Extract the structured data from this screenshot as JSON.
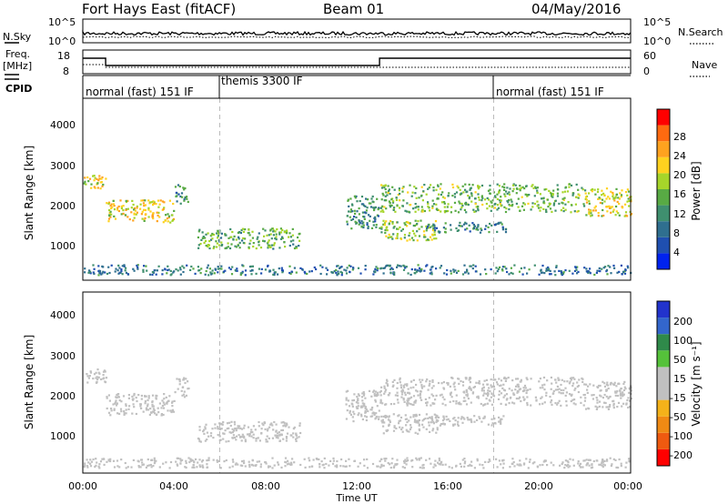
{
  "header": {
    "station": "Fort Hays East (fitACF)",
    "beam": "Beam 01",
    "date": "04/May/2016"
  },
  "top_panels": {
    "nsky": {
      "label": "N.Sky",
      "ticks": [
        "10^5",
        "10^0"
      ]
    },
    "nsearch": {
      "label": "N.Search",
      "ticks": [
        "10^5",
        "10^0"
      ]
    },
    "freq": {
      "label_line1": "Freq.",
      "label_line2": "[MHz]",
      "ticks": [
        "18",
        "8"
      ]
    },
    "nave": {
      "label": "Nave",
      "ticks": [
        "60",
        "0"
      ]
    },
    "cpid": {
      "label": "CPID",
      "segments": [
        "normal (fast) 151 IF",
        "themis 3300 IF",
        "normal (fast) 151 IF"
      ]
    }
  },
  "colors": {
    "power_scale": [
      "#0022ee",
      "#1f4fb0",
      "#2f6f8f",
      "#3f8f6f",
      "#58aa44",
      "#a6d52a",
      "#ffd21f",
      "#ffa21f",
      "#ff6a10",
      "#ff0000"
    ],
    "velocity_scale": [
      "#2233cc",
      "#3366cc",
      "#2f8a4a",
      "#55c23a",
      "#c0c0c0",
      "#c0c0c0",
      "#f4b21a",
      "#f08a14",
      "#ef5a10",
      "#ff0000"
    ]
  },
  "chart_data": [
    {
      "type": "heatmap",
      "name": "power",
      "ylabel": "Slant Range [km]",
      "y_ticks": [
        "1000",
        "2000",
        "3000",
        "4000"
      ],
      "ylim": [
        0,
        4500
      ],
      "colorbar_label": "Power [dB]",
      "colorbar_ticks": [
        "4",
        "8",
        "12",
        "16",
        "20",
        "24",
        "28"
      ],
      "colorbar_range": [
        0,
        30
      ],
      "echo_regions": [
        {
          "x": [
            0.0,
            1.0
          ],
          "y": [
            2250,
            2650
          ],
          "value": 18
        },
        {
          "x": [
            1.0,
            4.0
          ],
          "y": [
            1450,
            2000
          ],
          "value": 19
        },
        {
          "x": [
            4.0,
            4.6
          ],
          "y": [
            1900,
            2400
          ],
          "value": 10
        },
        {
          "x": [
            5.0,
            9.5
          ],
          "y": [
            800,
            1300
          ],
          "value": 13
        },
        {
          "x": [
            11.5,
            13.0
          ],
          "y": [
            1300,
            2100
          ],
          "value": 10
        },
        {
          "x": [
            13.0,
            15.5
          ],
          "y": [
            1000,
            1500
          ],
          "value": 15
        },
        {
          "x": [
            13.0,
            22.0
          ],
          "y": [
            1700,
            2400
          ],
          "value": 14
        },
        {
          "x": [
            22.0,
            24.0
          ],
          "y": [
            1600,
            2300
          ],
          "value": 18
        },
        {
          "x": [
            15.0,
            18.5
          ],
          "y": [
            1200,
            1450
          ],
          "value": 10
        },
        {
          "x": [
            0.0,
            24.0
          ],
          "y": [
            150,
            400
          ],
          "value": 8
        }
      ]
    },
    {
      "type": "heatmap",
      "name": "velocity",
      "ylabel": "Slant Range [km]",
      "y_ticks": [
        "1000",
        "2000",
        "3000",
        "4000"
      ],
      "ylim": [
        0,
        4500
      ],
      "colorbar_label": "Velocity [m s⁻¹]",
      "colorbar_ticks": [
        "200",
        "100",
        "50",
        "15",
        "-15",
        "-50",
        "-100",
        "-200"
      ],
      "colorbar_range": [
        -250,
        250
      ],
      "echo_regions": [
        {
          "x": [
            0.0,
            1.0
          ],
          "y": [
            2250,
            2650
          ],
          "value": 0
        },
        {
          "x": [
            1.0,
            4.0
          ],
          "y": [
            1450,
            2000
          ],
          "value": 0
        },
        {
          "x": [
            4.0,
            4.6
          ],
          "y": [
            1900,
            2400
          ],
          "value": 0
        },
        {
          "x": [
            5.0,
            9.5
          ],
          "y": [
            800,
            1300
          ],
          "value": 0
        },
        {
          "x": [
            11.5,
            13.0
          ],
          "y": [
            1300,
            2100
          ],
          "value": 0
        },
        {
          "x": [
            13.0,
            15.5
          ],
          "y": [
            1000,
            1500
          ],
          "value": 0
        },
        {
          "x": [
            13.0,
            22.0
          ],
          "y": [
            1700,
            2400
          ],
          "value": 0
        },
        {
          "x": [
            22.0,
            24.0
          ],
          "y": [
            1600,
            2300
          ],
          "value": 0
        },
        {
          "x": [
            15.0,
            18.5
          ],
          "y": [
            1200,
            1450
          ],
          "value": 0
        },
        {
          "x": [
            0.0,
            24.0
          ],
          "y": [
            150,
            400
          ],
          "value": -30
        }
      ]
    }
  ],
  "time_axis": {
    "label": "Time UT",
    "ticks": [
      "00:00",
      "04:00",
      "08:00",
      "12:00",
      "16:00",
      "20:00",
      "00:00"
    ],
    "xlim_hours": [
      0,
      24
    ],
    "marker_hours": [
      6,
      18
    ]
  }
}
